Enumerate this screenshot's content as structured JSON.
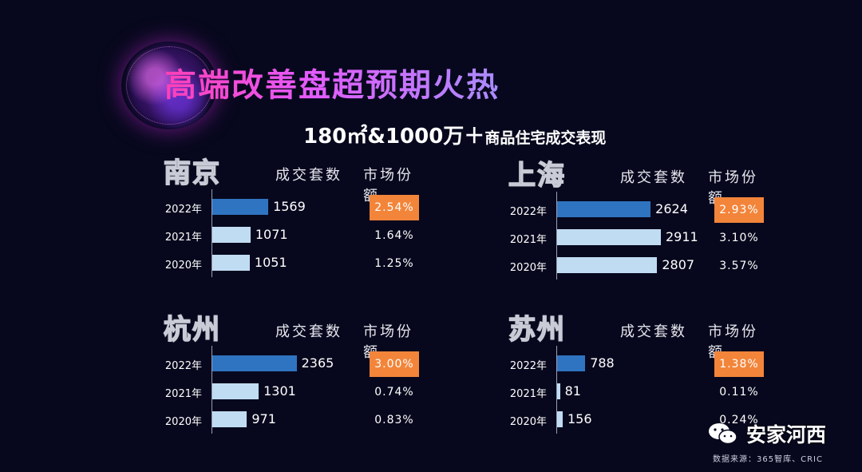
{
  "title": "高端改善盘超预期火热",
  "subtitle_main": "180㎡&1000万＋",
  "subtitle_rest": "商品住宅成交表现",
  "column_headers": {
    "volume": "成交套数",
    "share": "市场份额"
  },
  "colors": {
    "bar_2022": "#2f74c1",
    "bar_other": "#c0dcf2",
    "share_highlight": "#f2853a",
    "background": "#07081d"
  },
  "watermark": "安家河西",
  "source": "数据来源：365智库、CRIC",
  "chart_data": [
    {
      "type": "bar",
      "title": "南京",
      "categories": [
        "2022年",
        "2021年",
        "2020年"
      ],
      "values": [
        1569,
        1071,
        1051
      ],
      "value_labels": [
        "1569",
        "1071",
        "1051"
      ],
      "market_share": [
        "2.54%",
        "1.64%",
        "1.25%"
      ],
      "xlim": [
        0,
        2911
      ]
    },
    {
      "type": "bar",
      "title": "上海",
      "categories": [
        "2022年",
        "2021年",
        "2020年"
      ],
      "values": [
        2624,
        2911,
        2807
      ],
      "value_labels": [
        "2624",
        "2911",
        "2807"
      ],
      "market_share": [
        "2.93%",
        "3.10%",
        "3.57%"
      ],
      "xlim": [
        0,
        2911
      ]
    },
    {
      "type": "bar",
      "title": "杭州",
      "categories": [
        "2022年",
        "2021年",
        "2020年"
      ],
      "values": [
        2365,
        1301,
        971
      ],
      "value_labels": [
        "2365",
        "1301",
        "971"
      ],
      "market_share": [
        "3.00%",
        "0.74%",
        "0.83%"
      ],
      "xlim": [
        0,
        2911
      ]
    },
    {
      "type": "bar",
      "title": "苏州",
      "categories": [
        "2022年",
        "2021年",
        "2020年"
      ],
      "values": [
        788,
        81,
        156
      ],
      "value_labels": [
        "788",
        "81",
        "156"
      ],
      "market_share": [
        "1.38%",
        "0.11%",
        "0.24%"
      ],
      "xlim": [
        0,
        2911
      ]
    }
  ]
}
